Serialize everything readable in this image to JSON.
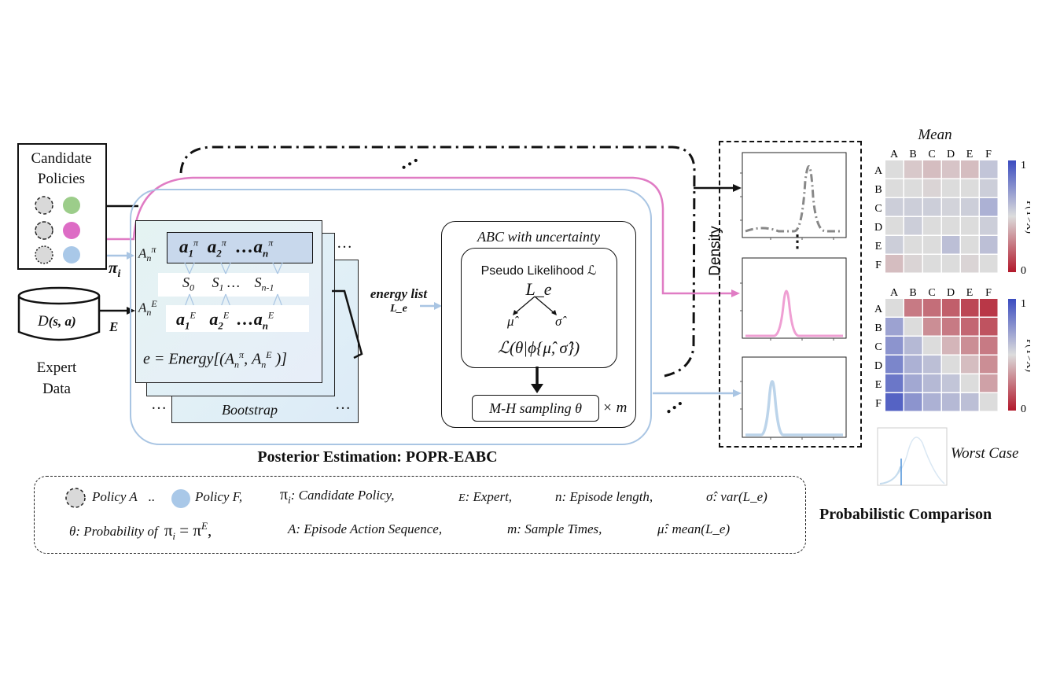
{
  "candidates": {
    "title_line1": "Candidate",
    "title_line2": "Policies",
    "pi_label": "π",
    "pi_sub": "i"
  },
  "expert": {
    "db_label": "D",
    "db_sub": "(s, a)",
    "e_label": "E",
    "title_line1": "Expert",
    "title_line2": "Data"
  },
  "bootstrap": {
    "row_pi_label": "A",
    "row_pi_sub": "n",
    "row_pi_sup": "π",
    "actions_pi": "a₁ᵖ a₂ᵖ …aₙᵖ",
    "a1_pi": "a",
    "a1_pi_sub": "1",
    "a2_pi": "a",
    "a2_pi_sub": "2",
    "an_pi": "…a",
    "an_pi_sub": "n",
    "pi_sup": "π",
    "states_s0": "S",
    "states_s0_sub": "0",
    "states_s1": "S",
    "states_s1_sub": "1",
    "states_dots": "…",
    "states_sn": "S",
    "states_sn_sub": "n-1",
    "row_e_label": "A",
    "row_e_sub": "n",
    "row_e_sup": "E",
    "e_sup": "E",
    "energy_formula": "e = Energy[(Aₙᵖ, Aₙᴱ )]",
    "energy_prefix": "e = Energy[(A",
    "energy_mid": ", A",
    "energy_suffix": " )]",
    "label": "Bootstrap",
    "dots": "…"
  },
  "energy_list": {
    "line1": "energy list",
    "line2": "L_e"
  },
  "abc": {
    "title": "ABC with uncertainty",
    "pseudo": "Pseudo Likelihood ℒ",
    "le": "L_e",
    "mu": "μ̂",
    "sigma": "σ̂",
    "likelihood": "ℒ(θ|ϕ{μ̂, σ̂})",
    "mh": "M-H sampling θ",
    "times": "× m"
  },
  "posterior_title": "Posterior Estimation: POPR-EABC",
  "density_label": "Density",
  "vdots": "⋮",
  "heatmaps": {
    "mean_title": "Mean",
    "worst_title": "Worst Case",
    "comparison_title": "Probabilistic Comparison",
    "labels": [
      "A",
      "B",
      "C",
      "D",
      "E",
      "F"
    ],
    "colorbar_top": "1",
    "colorbar_bottom": "0",
    "colorbar_label": "P(Y>X)",
    "mean_matrix": [
      [
        0.5,
        0.45,
        0.42,
        0.44,
        0.42,
        0.58
      ],
      [
        0.5,
        0.5,
        0.48,
        0.5,
        0.5,
        0.55
      ],
      [
        0.55,
        0.55,
        0.55,
        0.53,
        0.55,
        0.65
      ],
      [
        0.5,
        0.55,
        0.5,
        0.5,
        0.5,
        0.55
      ],
      [
        0.55,
        0.5,
        0.5,
        0.6,
        0.5,
        0.6
      ],
      [
        0.42,
        0.48,
        0.5,
        0.5,
        0.48,
        0.5
      ]
    ],
    "worst_matrix": [
      [
        0.5,
        0.25,
        0.22,
        0.18,
        0.12,
        0.08
      ],
      [
        0.7,
        0.5,
        0.3,
        0.25,
        0.2,
        0.15
      ],
      [
        0.75,
        0.62,
        0.5,
        0.4,
        0.3,
        0.25
      ],
      [
        0.8,
        0.65,
        0.6,
        0.5,
        0.42,
        0.3
      ],
      [
        0.85,
        0.68,
        0.62,
        0.58,
        0.5,
        0.35
      ],
      [
        0.92,
        0.75,
        0.65,
        0.62,
        0.6,
        0.5
      ]
    ]
  },
  "legend": {
    "policy_a": "Policy A",
    "dots": "..",
    "policy_f": "Policy F,",
    "pi_def": ": Candidate Policy,",
    "e_def": ": Expert,",
    "n_def": ": Episode length,",
    "sigma_def": ": var(L_e)",
    "theta_def_prefix": ": Probability of",
    "theta_eq": "π",
    "a_def": ": Episode Action Sequence,",
    "m_def": ": Sample Times,",
    "mu_def": ": mean(L_e)",
    "pi_sym": "π",
    "e_sym": "E",
    "n_sym": "n",
    "sigma_sym": "σ̂",
    "theta_sym": "θ",
    "a_sym": "A",
    "m_sym": "m",
    "mu_sym": "μ̂"
  },
  "colors": {
    "pink": "#e07cc4",
    "blue": "#a9c5e3",
    "gray_circle": "#d9d9d9",
    "green": "#9ccd8a",
    "magenta": "#dd6cc5",
    "light_blue": "#a9c8e8",
    "curve_gray": "#888888",
    "curve_pink": "#ef9fd3",
    "curve_blue": "#bcd4ea"
  }
}
